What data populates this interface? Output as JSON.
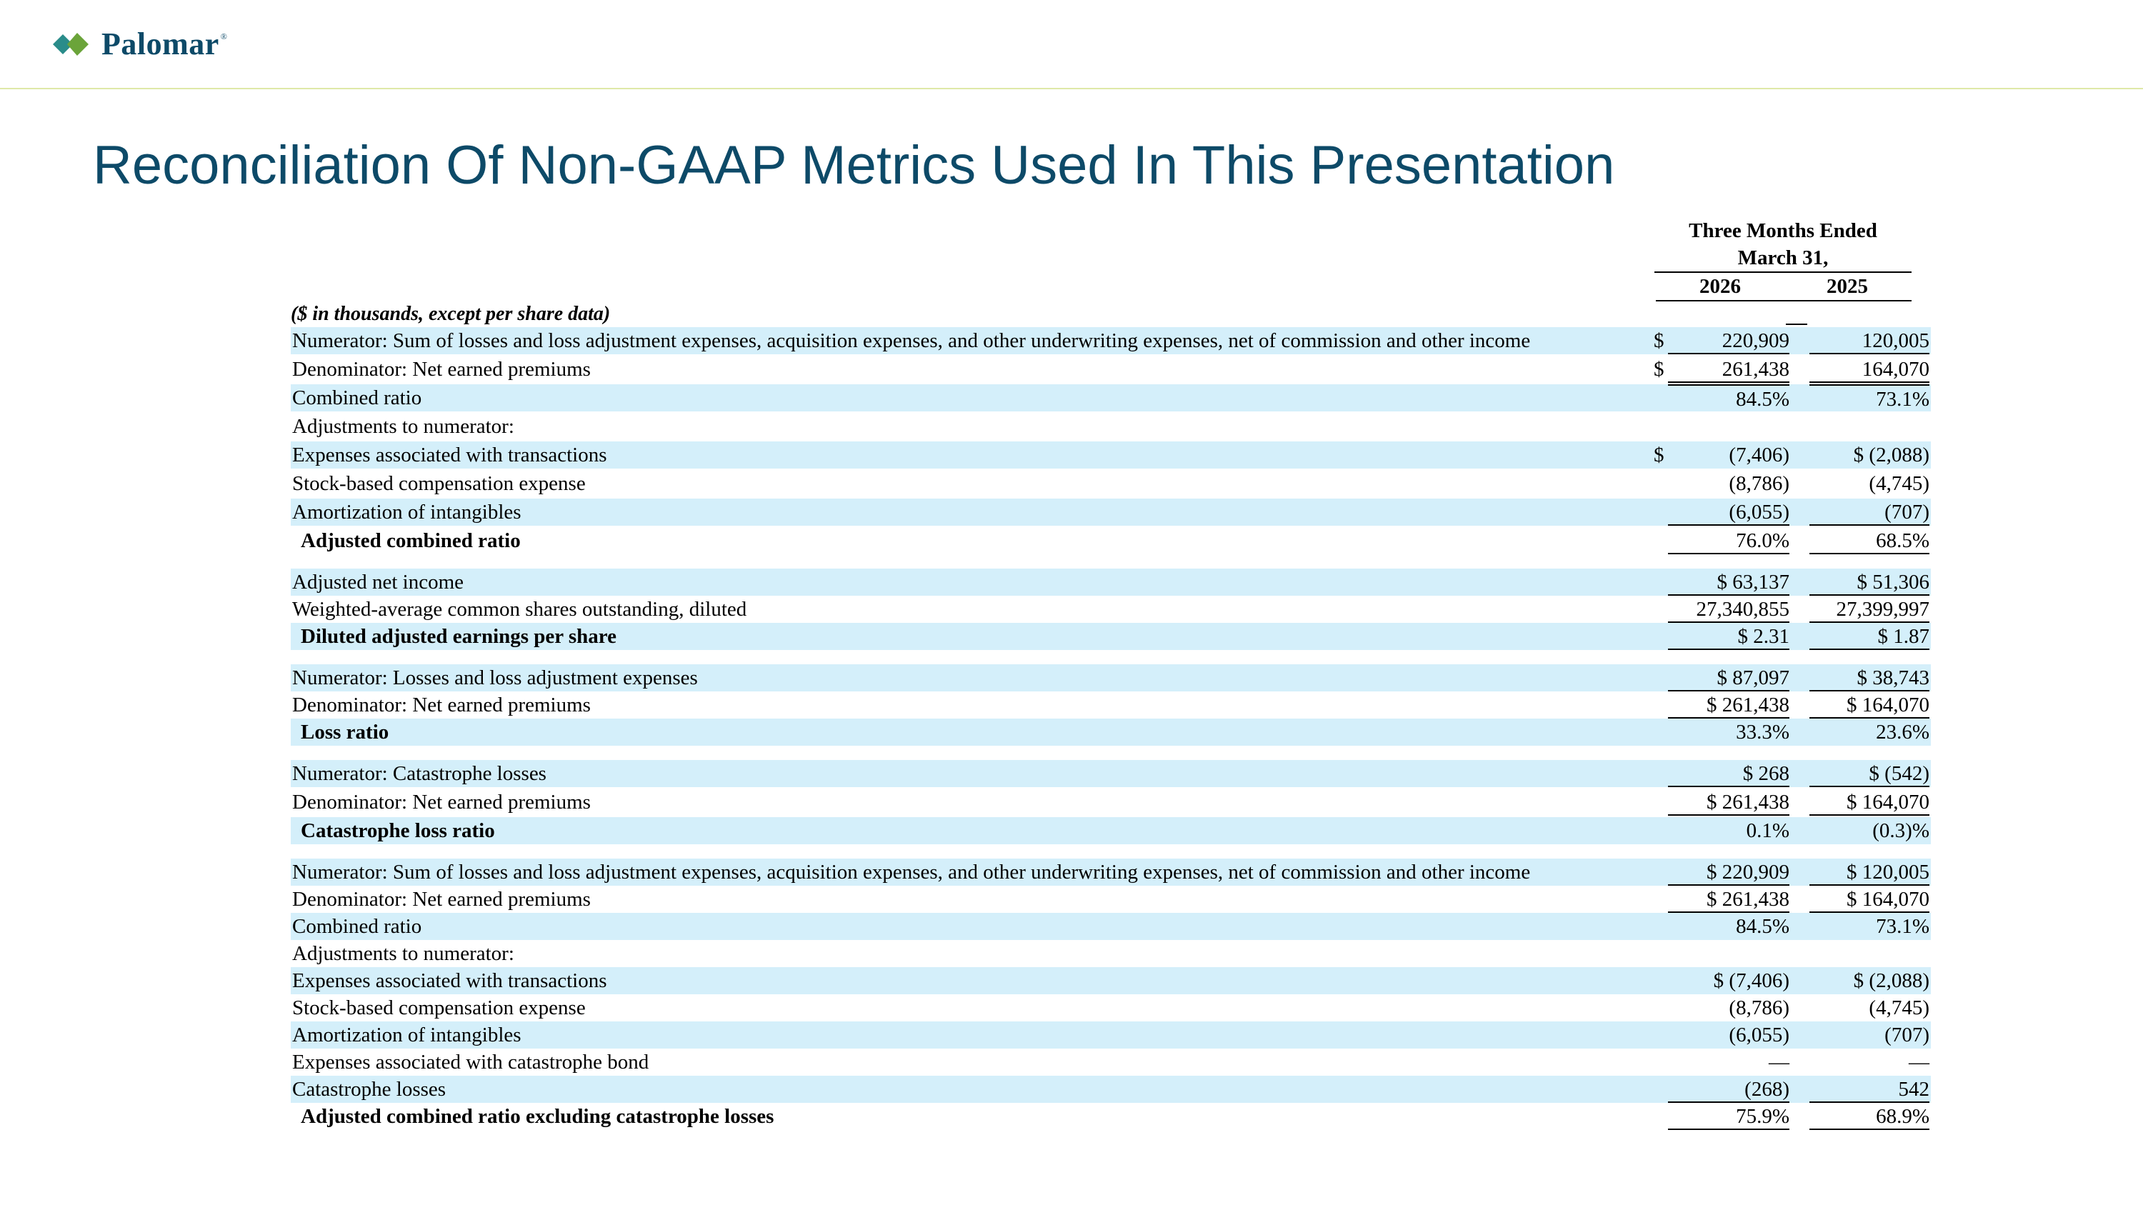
{
  "brand": {
    "name": "Palomar",
    "reg": "®",
    "colors": {
      "navy": "#0d4a68",
      "green": "#6ba43a",
      "teal": "#2a8c8a",
      "row_shade": "#d4effa"
    }
  },
  "title": "Reconciliation Of Non-GAAP Metrics Used In This Presentation",
  "table": {
    "header_line1": "Three Months Ended",
    "header_line2": "March 31,",
    "year1": "2026",
    "year2": "2025",
    "units_note": "($ in thousands, except per share data)",
    "rows": [
      {
        "label": "Numerator: Sum of losses and loss adjustment expenses, acquisition expenses, and other underwriting expenses, net of commission and other income",
        "dollar": "$",
        "v1": "220,909",
        "v2": "120,005"
      },
      {
        "label": "Denominator: Net earned premiums",
        "dollar": "$",
        "v1": "261,438",
        "v2": "164,070"
      },
      {
        "label": "Combined ratio",
        "dollar": "",
        "v1": "84.5%",
        "v2": "73.1%"
      },
      {
        "label": "Adjustments to numerator:",
        "dollar": "",
        "v1": "",
        "v2": ""
      },
      {
        "label": "Expenses associated with transactions",
        "dollar": "$",
        "v1": "(7,406)",
        "v2": "$ (2,088)"
      },
      {
        "label": "Stock-based compensation expense",
        "dollar": "",
        "v1": "(8,786)",
        "v2": "(4,745)"
      },
      {
        "label": "Amortization of intangibles",
        "dollar": "",
        "v1": "(6,055)",
        "v2": "(707)"
      },
      {
        "label": "Adjusted combined ratio",
        "dollar": "",
        "v1": "76.0%",
        "v2": "68.5%"
      },
      {
        "label": "Adjusted net income",
        "dollar": "",
        "v1": "$ 63,137",
        "v2": "$ 51,306"
      },
      {
        "label": "Weighted-average common shares outstanding, diluted",
        "dollar": "",
        "v1": "27,340,855",
        "v2": "27,399,997"
      },
      {
        "label": "Diluted adjusted earnings per share",
        "dollar": "",
        "v1": "$ 2.31",
        "v2": "$ 1.87"
      },
      {
        "label": "Numerator: Losses and loss adjustment expenses",
        "dollar": "",
        "v1": "$ 87,097",
        "v2": "$ 38,743"
      },
      {
        "label": "Denominator: Net earned premiums",
        "dollar": "",
        "v1": "$ 261,438",
        "v2": "$ 164,070"
      },
      {
        "label": "Loss ratio",
        "dollar": "",
        "v1": "33.3%",
        "v2": "23.6%"
      },
      {
        "label": "Numerator: Catastrophe losses",
        "dollar": "",
        "v1": "$ 268",
        "v2": "$ (542)"
      },
      {
        "label": "Denominator: Net earned premiums",
        "dollar": "",
        "v1": "$ 261,438",
        "v2": "$ 164,070"
      },
      {
        "label": "Catastrophe loss ratio",
        "dollar": "",
        "v1": "0.1%",
        "v2": "(0.3)%"
      },
      {
        "label": "Numerator: Sum of losses and loss adjustment expenses, acquisition expenses, and other underwriting expenses, net of commission and other income",
        "dollar": "",
        "v1": "$ 220,909",
        "v2": "$ 120,005"
      },
      {
        "label": "Denominator: Net earned premiums",
        "dollar": "",
        "v1": "$ 261,438",
        "v2": "$ 164,070"
      },
      {
        "label": "Combined ratio",
        "dollar": "",
        "v1": "84.5%",
        "v2": "73.1%"
      },
      {
        "label": "Adjustments to numerator:",
        "dollar": "",
        "v1": "",
        "v2": ""
      },
      {
        "label": "Expenses associated with transactions",
        "dollar": "",
        "v1": "$ (7,406)",
        "v2": "$ (2,088)"
      },
      {
        "label": "Stock-based compensation expense",
        "dollar": "",
        "v1": "(8,786)",
        "v2": "(4,745)"
      },
      {
        "label": "Amortization of intangibles",
        "dollar": "",
        "v1": "(6,055)",
        "v2": "(707)"
      },
      {
        "label": "Expenses associated with catastrophe bond",
        "dollar": "",
        "v1": "—",
        "v2": "—"
      },
      {
        "label": "Catastrophe losses",
        "dollar": "",
        "v1": "(268)",
        "v2": "542"
      },
      {
        "label": "Adjusted combined ratio excluding catastrophe losses",
        "dollar": "",
        "v1": "75.9%",
        "v2": "68.9%"
      }
    ]
  }
}
